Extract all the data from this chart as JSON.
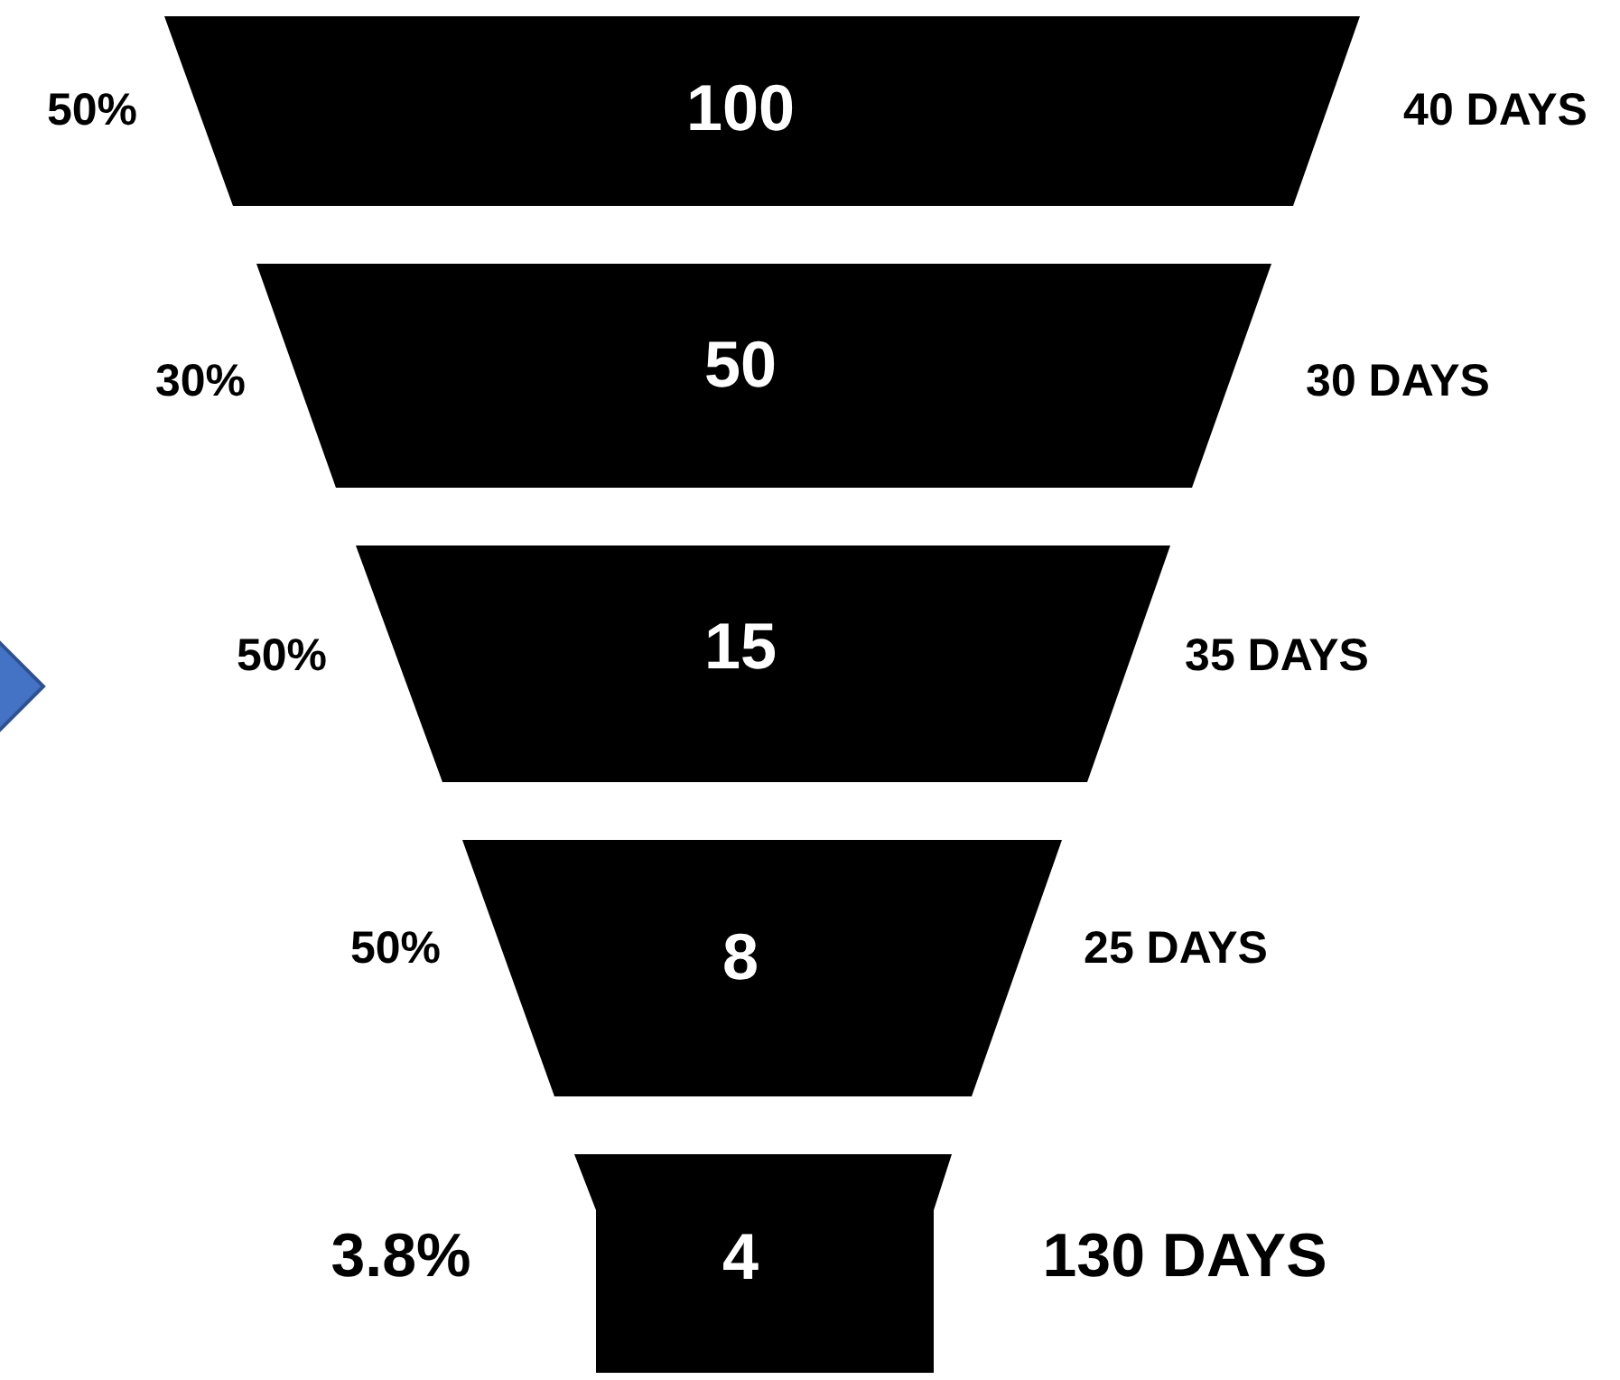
{
  "chart_data": {
    "type": "other",
    "values": [
      100,
      50,
      15,
      8,
      4
    ],
    "color": "#000000",
    "data_labels": true,
    "annotations": [
      "50%",
      "30%",
      "50%",
      "50%",
      "3.8%",
      "40 DAYS",
      "30 DAYS",
      "35 DAYS",
      "25 DAYS",
      "130 DAYS"
    ]
  }
}
